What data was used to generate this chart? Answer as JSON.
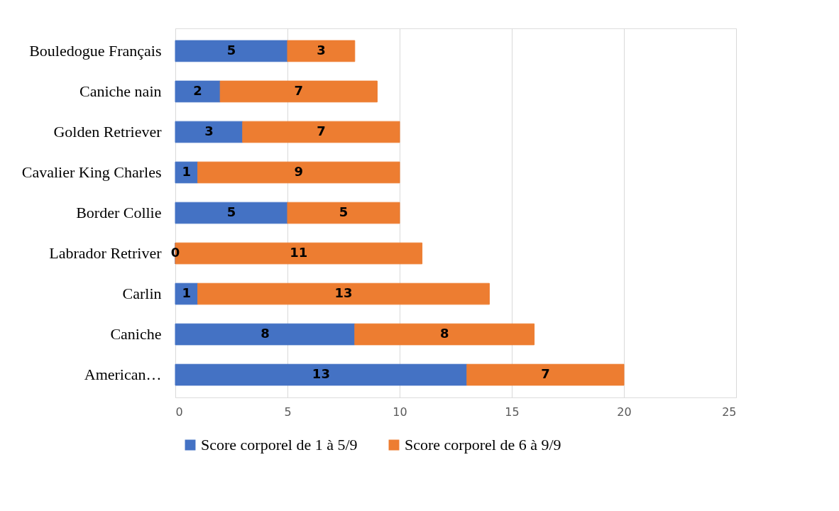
{
  "chart_data": {
    "type": "bar",
    "orientation": "horizontal",
    "stacked": true,
    "categories": [
      "Bouledogue Français",
      "Caniche nain",
      "Golden Retriever",
      "Cavalier King Charles",
      "Border Collie",
      "Labrador Retriver",
      "Carlin",
      "Caniche",
      "American…"
    ],
    "series": [
      {
        "name": "Score corporel de 1 à 5/9",
        "color": "#4472c4",
        "values": [
          5,
          2,
          3,
          1,
          5,
          0,
          1,
          8,
          13
        ]
      },
      {
        "name": "Score corporel de 6 à 9/9",
        "color": "#ed7d31",
        "values": [
          3,
          7,
          7,
          9,
          5,
          11,
          13,
          8,
          7
        ]
      }
    ],
    "xlim": [
      0,
      25
    ],
    "xticks": [
      0,
      5,
      10,
      15,
      20,
      25
    ],
    "grid": "x",
    "legend": "bottom",
    "data_labels": true
  }
}
